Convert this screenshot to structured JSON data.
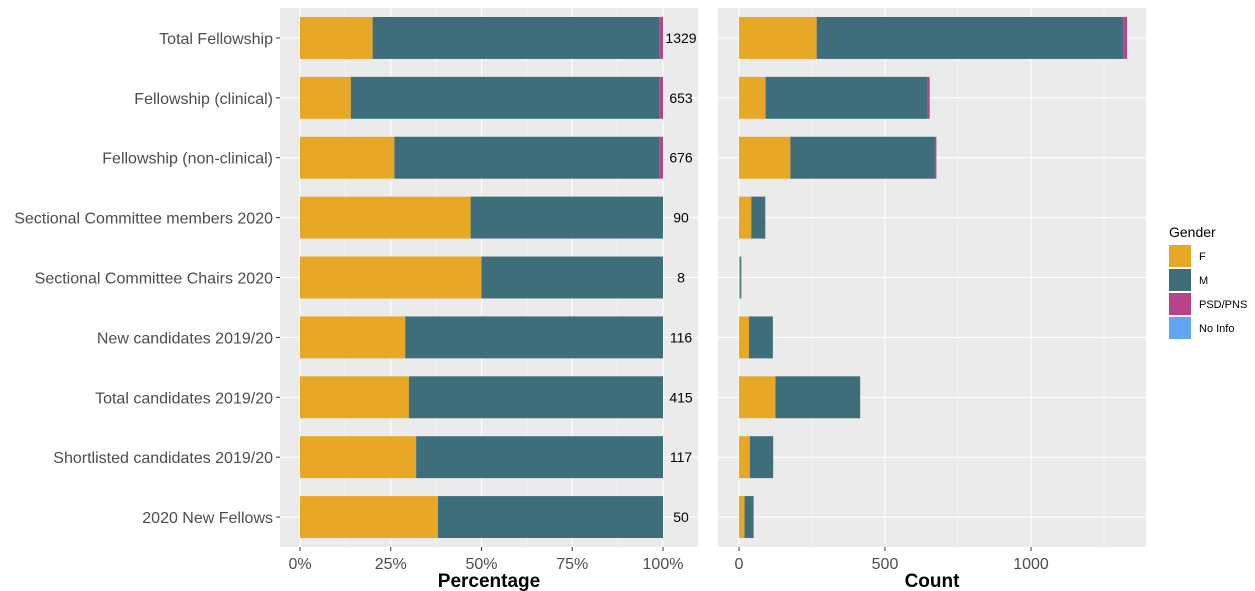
{
  "chart_data": [
    {
      "type": "bar",
      "orientation": "horizontal",
      "stacked": true,
      "normalized": true,
      "xlabel": "Percentage",
      "ylabel": "",
      "xlim": [
        0,
        1
      ],
      "xticks": [
        0,
        0.25,
        0.5,
        0.75,
        1
      ],
      "xtick_labels": [
        "0%",
        "25%",
        "50%",
        "75%",
        "100%"
      ],
      "categories": [
        "Total Fellowship",
        "Fellowship (clinical)",
        "Fellowship (non-clinical)",
        "Sectional Committee members 2020",
        "Sectional Committee Chairs 2020",
        "New candidates 2019/20",
        "Total candidates 2019/20",
        "Shortlisted candidates 2019/20",
        "2020 New Fellows"
      ],
      "series": [
        {
          "name": "F",
          "values": [
            0.2,
            0.14,
            0.26,
            0.47,
            0.5,
            0.29,
            0.3,
            0.32,
            0.38
          ]
        },
        {
          "name": "M",
          "values": [
            0.79,
            0.85,
            0.73,
            0.53,
            0.5,
            0.71,
            0.7,
            0.68,
            0.62
          ]
        },
        {
          "name": "PSD/PNS",
          "values": [
            0.01,
            0.01,
            0.01,
            0,
            0,
            0,
            0,
            0,
            0
          ]
        },
        {
          "name": "No Info",
          "values": [
            0,
            0,
            0,
            0,
            0,
            0,
            0,
            0,
            0
          ]
        }
      ],
      "totals": [
        "1329",
        "653",
        "676",
        "90",
        "8",
        "116",
        "415",
        "117",
        "50"
      ],
      "grid": true
    },
    {
      "type": "bar",
      "orientation": "horizontal",
      "stacked": true,
      "xlabel": "Count",
      "xlim": [
        0,
        1400
      ],
      "xticks": [
        0,
        500,
        1000
      ],
      "xtick_labels": [
        "0",
        "500",
        "1000"
      ],
      "categories": [
        "Total Fellowship",
        "Fellowship (clinical)",
        "Fellowship (non-clinical)",
        "Sectional Committee members 2020",
        "Sectional Committee Chairs 2020",
        "New candidates 2019/20",
        "Total candidates 2019/20",
        "Shortlisted candidates 2019/20",
        "2020 New Fellows"
      ],
      "series": [
        {
          "name": "F",
          "values": [
            266,
            91,
            176,
            42,
            4,
            34,
            125,
            37,
            19
          ]
        },
        {
          "name": "M",
          "values": [
            1050,
            555,
            495,
            48,
            4,
            82,
            290,
            80,
            31
          ]
        },
        {
          "name": "PSD/PNS",
          "values": [
            13,
            7,
            5,
            0,
            0,
            0,
            0,
            0,
            0
          ]
        },
        {
          "name": "No Info",
          "values": [
            0,
            0,
            0,
            0,
            0,
            0,
            0,
            0,
            0
          ]
        }
      ],
      "grid": true
    }
  ],
  "legend": {
    "title": "Gender",
    "position": "right",
    "items": [
      {
        "name": "F",
        "color": "#E8A825"
      },
      {
        "name": "M",
        "color": "#3E6E7A"
      },
      {
        "name": "PSD/PNS",
        "color": "#B5448B"
      },
      {
        "name": "No Info",
        "color": "#5FA6F7"
      }
    ]
  },
  "colors": {
    "panel_background": "#EBEBEB",
    "grid_major": "#FFFFFF",
    "text": "#4D4D4D",
    "title_text": "#000000"
  }
}
